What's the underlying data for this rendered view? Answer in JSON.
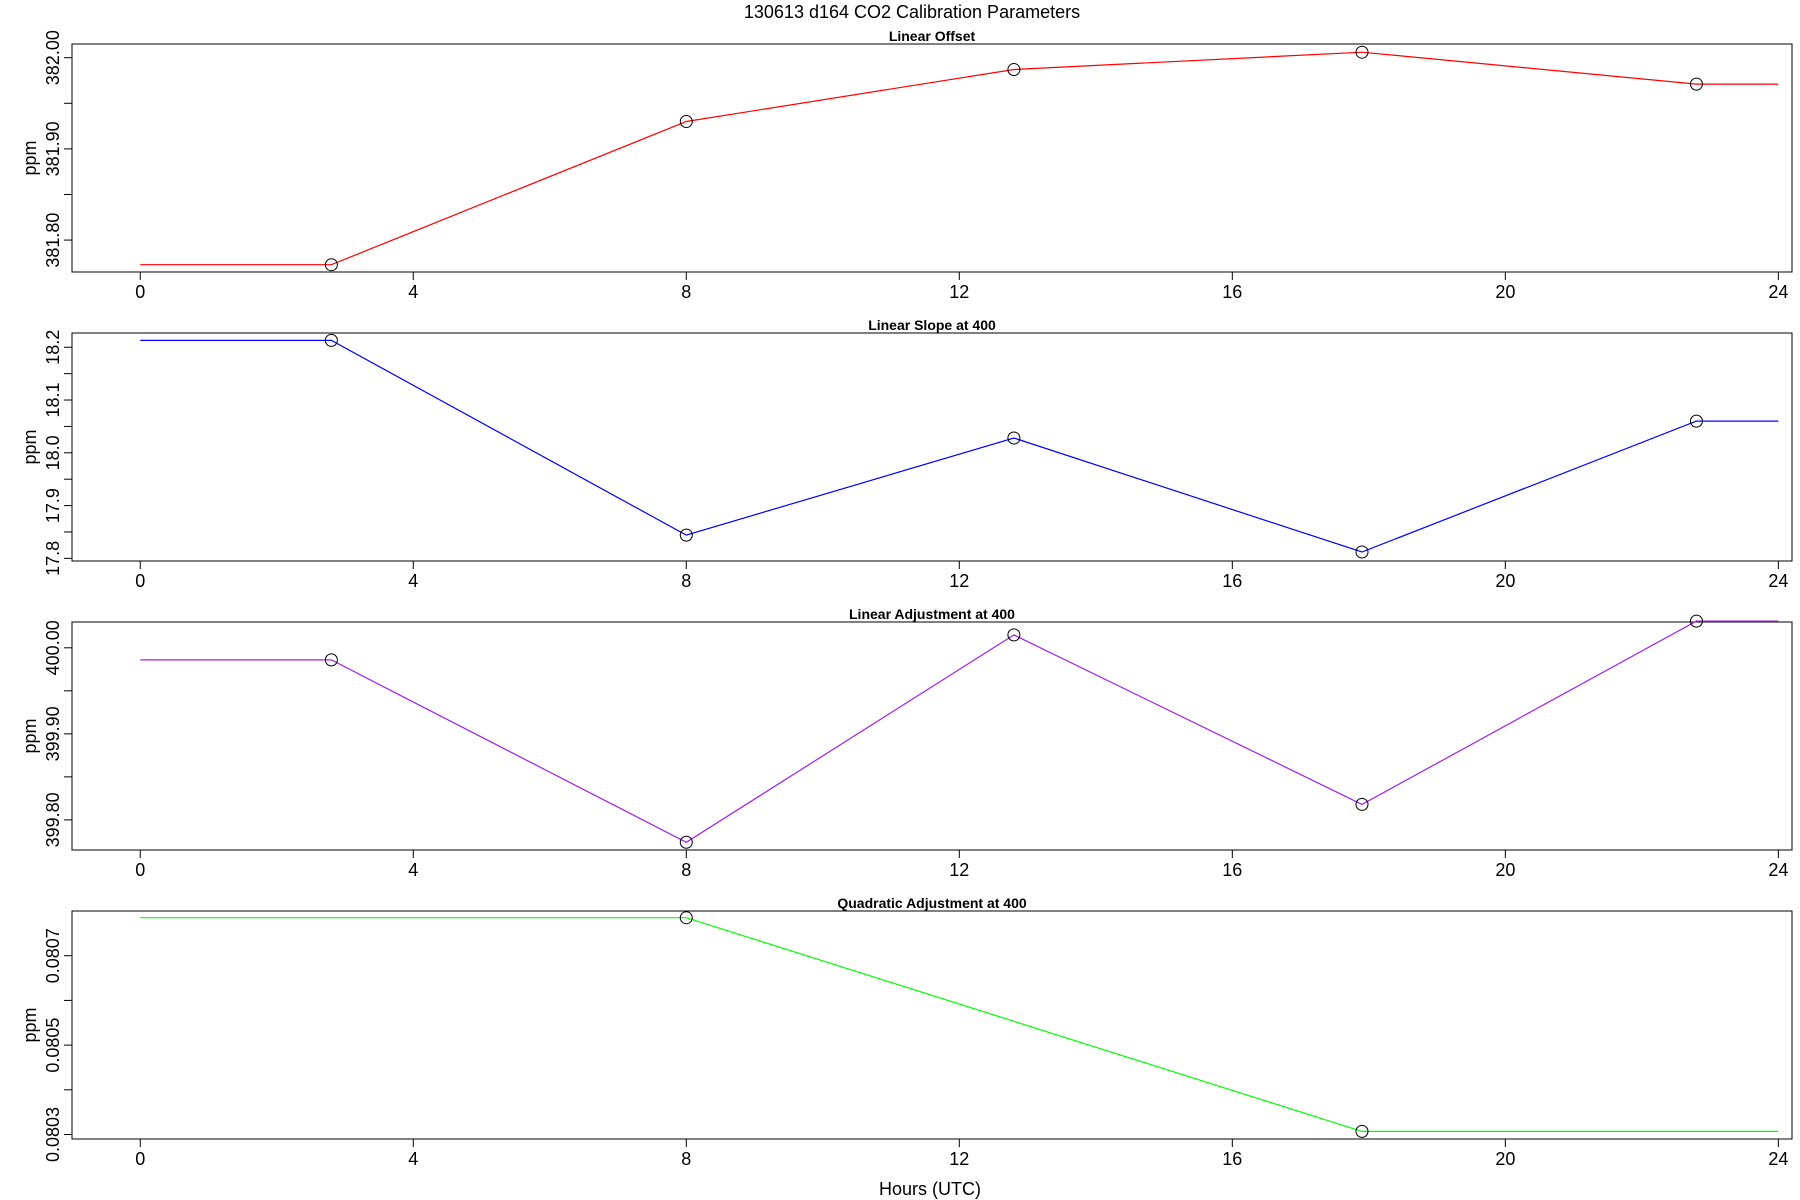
{
  "title": "130613   d164   CO2 Calibration Parameters",
  "chart_data": [
    {
      "type": "line",
      "title": "Linear Offset",
      "ylabel": "ppm",
      "xlabel": "",
      "color": "#ff0000",
      "xlim": [
        -1,
        24.2
      ],
      "ylim": [
        381.765,
        382.015
      ],
      "xticks": [
        "0",
        "4",
        "8",
        "12",
        "16",
        "20",
        "24"
      ],
      "yticks": [
        "381.80",
        "381.90",
        "382.00"
      ],
      "line_x": [
        0,
        2.8,
        8,
        12.8,
        17.9,
        22.8,
        24
      ],
      "line_y": [
        381.773,
        381.773,
        381.93,
        381.987,
        382.006,
        381.971,
        381.971
      ],
      "points_x": [
        2.8,
        8,
        12.8,
        17.9,
        22.8
      ],
      "points_y": [
        381.773,
        381.93,
        381.987,
        382.006,
        381.971
      ]
    },
    {
      "type": "line",
      "title": "Linear Slope at 400",
      "ylabel": "ppm",
      "xlabel": "",
      "color": "#0000ff",
      "xlim": [
        -1,
        24.2
      ],
      "ylim": [
        17.795,
        18.227
      ],
      "xticks": [
        "0",
        "4",
        "8",
        "12",
        "16",
        "20",
        "24"
      ],
      "yticks": [
        "17.8",
        "17.9",
        "18.0",
        "18.1",
        "18.2"
      ],
      "line_x": [
        0,
        2.8,
        8,
        12.8,
        17.9,
        22.8,
        24
      ],
      "line_y": [
        18.213,
        18.213,
        17.844,
        18.028,
        17.812,
        18.06,
        18.06
      ],
      "points_x": [
        2.8,
        8,
        12.8,
        17.9,
        22.8
      ],
      "points_y": [
        18.213,
        17.844,
        18.028,
        17.812,
        18.06
      ]
    },
    {
      "type": "line",
      "title": "Linear Adjustment at 400",
      "ylabel": "ppm",
      "xlabel": "",
      "color": "#a020f0",
      "xlim": [
        -1,
        24.2
      ],
      "ylim": [
        399.765,
        400.03
      ],
      "xticks": [
        "0",
        "4",
        "8",
        "12",
        "16",
        "20",
        "24"
      ],
      "yticks": [
        "399.80",
        "399.90",
        "400.00"
      ],
      "line_x": [
        0,
        2.8,
        8,
        12.8,
        17.9,
        22.8,
        24
      ],
      "line_y": [
        399.986,
        399.986,
        399.774,
        400.015,
        399.818,
        400.031,
        400.031
      ],
      "points_x": [
        2.8,
        8,
        12.8,
        17.9,
        22.8
      ],
      "points_y": [
        399.986,
        399.774,
        400.015,
        399.818,
        400.031
      ]
    },
    {
      "type": "line",
      "title": "Quadratic Adjustment at 400",
      "ylabel": "ppm",
      "xlabel": "Hours (UTC)",
      "color": "#00ff00",
      "xlim": [
        -1,
        24.2
      ],
      "ylim": [
        0.08029,
        0.0808
      ],
      "xticks": [
        "0",
        "4",
        "8",
        "12",
        "16",
        "20",
        "24"
      ],
      "yticks": [
        "0.0803",
        "0.0805",
        "0.0807"
      ],
      "line_x": [
        0,
        8,
        17.9,
        24
      ],
      "line_y": [
        0.080785,
        0.080785,
        0.080307,
        0.080307
      ],
      "points_x": [
        8,
        17.9
      ],
      "points_y": [
        0.080785,
        0.080307
      ]
    }
  ]
}
